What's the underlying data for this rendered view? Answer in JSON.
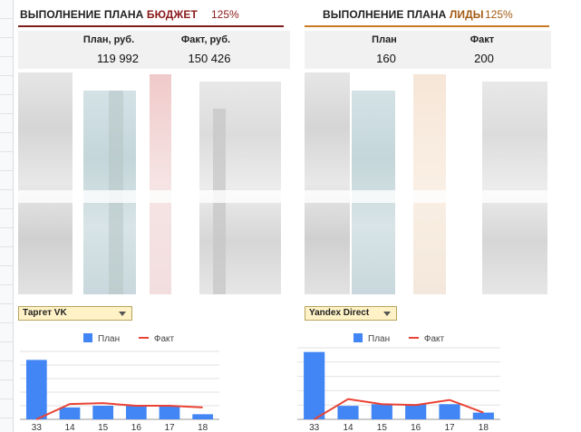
{
  "budget": {
    "title_prefix": "ВЫПОЛНЕНИЕ ПЛАНА ",
    "title_highlight": "БЮДЖЕТ",
    "percent": "125%",
    "plan_label": "План, руб.",
    "fact_label": "Факт, руб.",
    "plan_value": "119 992",
    "fact_value": "150 426"
  },
  "leads": {
    "title_prefix": "ВЫПОЛНЕНИЕ ПЛАНА ",
    "title_highlight": "ЛИДЫ",
    "percent": "125%",
    "plan_label": "План",
    "fact_label": "Факт",
    "plan_value": "160",
    "fact_value": "200"
  },
  "filters": {
    "left_selected": "Таргет VK",
    "right_selected": "Yandex Direct"
  },
  "legend": {
    "plan": "План",
    "fact": "Факт"
  },
  "colors": {
    "plan_bar": "#4285f4",
    "fact_line": "#ea4335",
    "budget_accent": "#7f1d1d",
    "leads_accent": "#c77a22"
  },
  "chart_data": [
    {
      "type": "bar",
      "categories": [
        "33",
        "14",
        "15",
        "16",
        "17",
        "18"
      ],
      "series": [
        {
          "name": "План",
          "type": "bar",
          "values": [
            70,
            14,
            16,
            16,
            16,
            6
          ]
        },
        {
          "name": "Факт",
          "type": "line",
          "values": [
            0,
            18,
            19,
            16,
            16,
            14
          ]
        }
      ],
      "ylim": [
        0,
        80
      ],
      "grid": true,
      "legend_position": "top"
    },
    {
      "type": "bar",
      "categories": [
        "33",
        "14",
        "15",
        "16",
        "17",
        "18"
      ],
      "series": [
        {
          "name": "План",
          "type": "bar",
          "values": [
            80,
            16,
            18,
            18,
            18,
            8
          ]
        },
        {
          "name": "Факт",
          "type": "line",
          "values": [
            0,
            24,
            18,
            17,
            23,
            8
          ]
        }
      ],
      "ylim": [
        0,
        85
      ],
      "grid": true,
      "legend_position": "top"
    }
  ]
}
